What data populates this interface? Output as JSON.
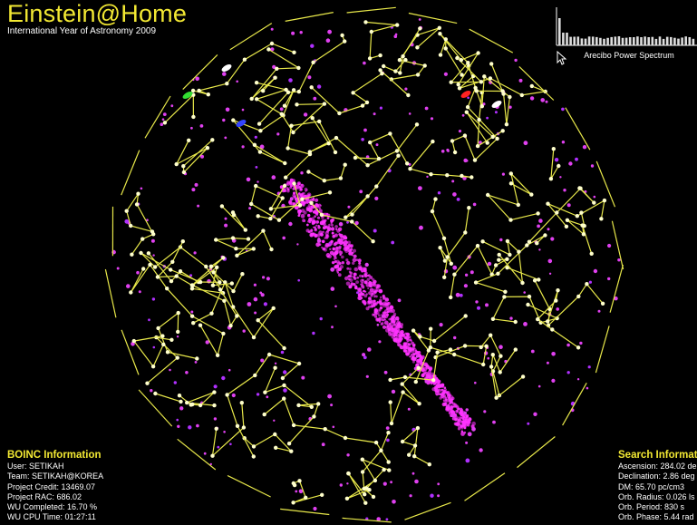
{
  "header": {
    "title": "Einstein@Home",
    "subtitle": "International Year of Astronomy 2009"
  },
  "spectrum": {
    "label": "Arecibo Power Spectrum"
  },
  "boinc": {
    "heading": "BOINC Information",
    "user": "User: SETIKAH",
    "team": "Team: SETIKAH@KOREA",
    "credit": "Project Credit: 13469.07",
    "rac": "Project RAC: 686.02",
    "completed": "WU Completed: 16.70 %",
    "cpu_time": "WU CPU Time: 01:27:11"
  },
  "search": {
    "heading": "Search Informati",
    "ascension": "Ascension: 284.02 de",
    "declination": "Declination: 2.86 deg",
    "dm": "DM: 65.70 pc/cm3",
    "orb_radius": "Orb. Radius: 0.026 ls",
    "orb_period": "Orb. Period: 830 s",
    "orb_phase": "Orb. Phase: 5.44 rad"
  },
  "colors": {
    "constellation": "#e8e84a",
    "star": "#ffffcc",
    "milky_way": "#ff33ff",
    "background": "#000000",
    "title": "#f2e833"
  }
}
